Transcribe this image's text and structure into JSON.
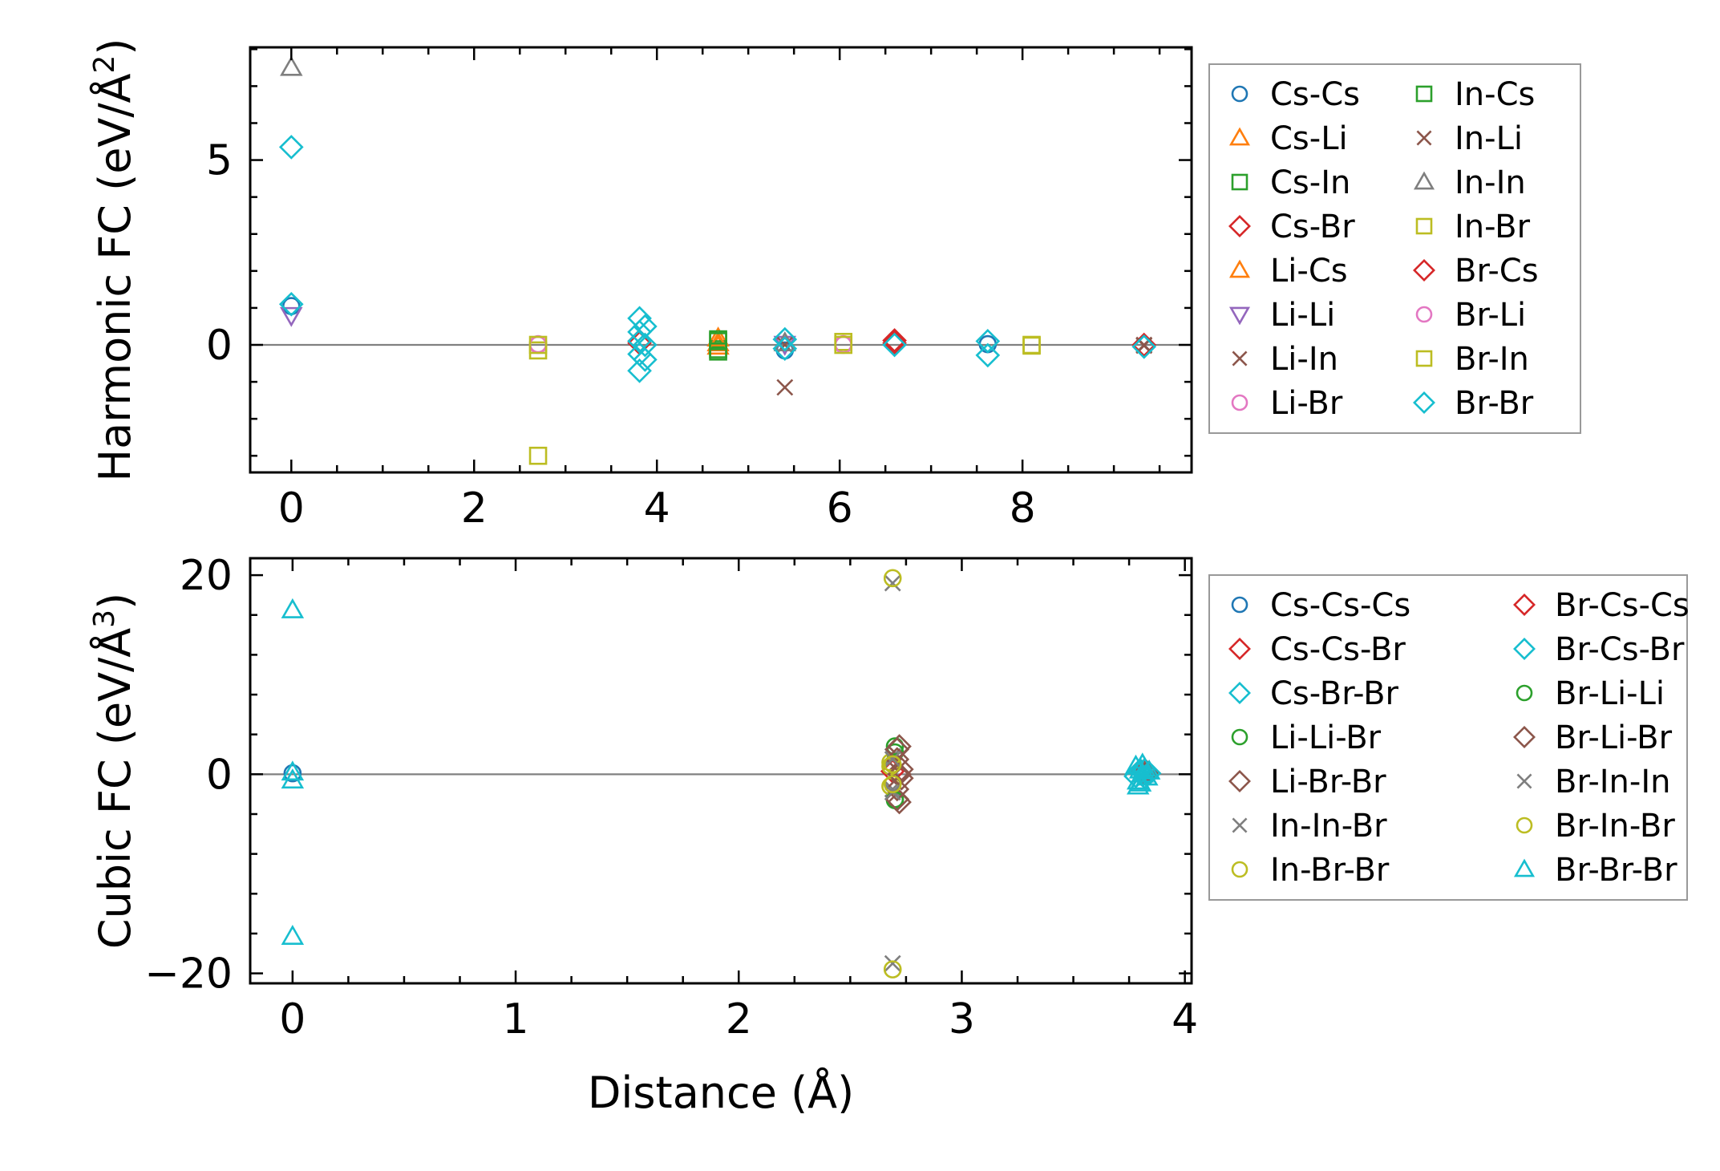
{
  "chart_data": [
    {
      "type": "scatter",
      "ylabel": "Harmonic FC (eV/Å²)",
      "ylabel_parts": {
        "main": "Harmonic FC (eV/Å",
        "sup": "2",
        "close": ")"
      },
      "xlabel": "",
      "xlim": [
        -0.45,
        9.85
      ],
      "ylim": [
        -3.45,
        8.05
      ],
      "xticks": [
        0,
        2,
        4,
        6,
        8
      ],
      "yticks": [
        0,
        5
      ],
      "legend_position": "right-outside-top",
      "legend_columns": 2,
      "series": [
        {
          "name": "Cs-Cs",
          "marker": "circle",
          "color": "#1f77b4",
          "points": [
            [
              0,
              1.05
            ],
            [
              5.4,
              -0.15
            ],
            [
              7.62,
              0.02
            ]
          ]
        },
        {
          "name": "Cs-Li",
          "marker": "triangle-up",
          "color": "#ff7f0e",
          "points": [
            [
              4.67,
              0.18
            ],
            [
              4.67,
              -0.04
            ]
          ]
        },
        {
          "name": "Cs-In",
          "marker": "square",
          "color": "#2ca02c",
          "points": [
            [
              4.67,
              0.15
            ],
            [
              4.67,
              -0.12
            ]
          ]
        },
        {
          "name": "Cs-Br",
          "marker": "diamond",
          "color": "#d62728",
          "points": [
            [
              3.81,
              0.1
            ],
            [
              6.6,
              0.05
            ],
            [
              9.33,
              0.0
            ]
          ]
        },
        {
          "name": "Li-Cs",
          "marker": "triangle-up",
          "color": "#ff7f0e",
          "points": [
            [
              4.67,
              0.05
            ]
          ]
        },
        {
          "name": "Li-Li",
          "marker": "triangle-down",
          "color": "#9467bd",
          "points": [
            [
              0,
              0.8
            ],
            [
              5.4,
              0.02
            ]
          ]
        },
        {
          "name": "Li-In",
          "marker": "x",
          "color": "#8c564b",
          "points": [
            [
              5.4,
              -1.15
            ],
            [
              9.33,
              0.0
            ]
          ]
        },
        {
          "name": "Li-Br",
          "marker": "circle",
          "color": "#e377c2",
          "points": [
            [
              2.7,
              0.02
            ],
            [
              6.04,
              0.02
            ]
          ]
        },
        {
          "name": "In-Cs",
          "marker": "square",
          "color": "#2ca02c",
          "points": [
            [
              4.67,
              0.1
            ],
            [
              4.67,
              -0.18
            ]
          ]
        },
        {
          "name": "In-Li",
          "marker": "x",
          "color": "#8c564b",
          "points": [
            [
              5.4,
              0.0
            ],
            [
              9.33,
              -0.02
            ]
          ]
        },
        {
          "name": "In-In",
          "marker": "triangle-up",
          "color": "#7f7f7f",
          "points": [
            [
              0,
              7.5
            ],
            [
              5.4,
              0.05
            ]
          ]
        },
        {
          "name": "In-Br",
          "marker": "square",
          "color": "#bcbd22",
          "points": [
            [
              2.7,
              -3.0
            ],
            [
              2.7,
              -0.15
            ],
            [
              6.04,
              0.08
            ],
            [
              8.1,
              0.0
            ]
          ]
        },
        {
          "name": "Br-Cs",
          "marker": "diamond",
          "color": "#d62728",
          "points": [
            [
              6.6,
              0.12
            ],
            [
              3.81,
              0.05
            ]
          ]
        },
        {
          "name": "Br-Li",
          "marker": "circle",
          "color": "#e377c2",
          "points": [
            [
              2.7,
              0.0
            ],
            [
              6.04,
              0.0
            ]
          ]
        },
        {
          "name": "Br-In",
          "marker": "square",
          "color": "#bcbd22",
          "points": [
            [
              2.7,
              0.0
            ],
            [
              6.04,
              0.0
            ],
            [
              8.1,
              -0.02
            ]
          ]
        },
        {
          "name": "Br-Br",
          "marker": "diamond",
          "color": "#17becf",
          "points": [
            [
              0,
              5.35
            ],
            [
              0,
              1.1
            ],
            [
              3.81,
              0.72
            ],
            [
              3.81,
              0.35
            ],
            [
              3.81,
              0.1
            ],
            [
              3.81,
              -0.25
            ],
            [
              3.81,
              -0.7
            ],
            [
              3.87,
              0.5
            ],
            [
              3.87,
              -0.4
            ],
            [
              3.87,
              0.0
            ],
            [
              5.4,
              0.15
            ],
            [
              5.4,
              -0.1
            ],
            [
              6.6,
              0.0
            ],
            [
              7.62,
              0.1
            ],
            [
              7.62,
              -0.28
            ],
            [
              9.33,
              -0.05
            ]
          ]
        }
      ]
    },
    {
      "type": "scatter",
      "ylabel": "Cubic FC (eV/Å³)",
      "ylabel_parts": {
        "main": "Cubic FC (eV/Å",
        "sup": "3",
        "close": ")"
      },
      "xlabel": "Distance (Å)",
      "xlim": [
        -0.19,
        4.03
      ],
      "ylim": [
        -21.0,
        21.7
      ],
      "xticks": [
        0,
        1,
        2,
        3,
        4
      ],
      "yticks": [
        -20,
        0,
        20
      ],
      "ytick_labels": [
        "−20",
        "0",
        "20"
      ],
      "legend_position": "right-outside-top",
      "legend_columns": 2,
      "series": [
        {
          "name": "Cs-Cs-Cs",
          "marker": "circle",
          "color": "#1f77b4",
          "points": [
            [
              0,
              0.1
            ],
            [
              3.81,
              0.0
            ]
          ]
        },
        {
          "name": "Cs-Cs-Br",
          "marker": "diamond",
          "color": "#d62728",
          "points": [
            [
              2.69,
              0.3
            ],
            [
              3.81,
              0.2
            ]
          ]
        },
        {
          "name": "Cs-Br-Br",
          "marker": "diamond",
          "color": "#17becf",
          "points": [
            [
              3.8,
              0.4
            ],
            [
              3.82,
              -0.3
            ]
          ]
        },
        {
          "name": "Li-Li-Br",
          "marker": "circle",
          "color": "#2ca02c",
          "points": [
            [
              2.7,
              2.2
            ],
            [
              2.7,
              -2.5
            ]
          ]
        },
        {
          "name": "Li-Br-Br",
          "marker": "diamond",
          "color": "#8c564b",
          "points": [
            [
              2.72,
              2.8
            ],
            [
              2.72,
              -2.8
            ],
            [
              2.73,
              0.5
            ],
            [
              2.73,
              -0.4
            ],
            [
              3.83,
              0.2
            ]
          ]
        },
        {
          "name": "In-In-Br",
          "marker": "x",
          "color": "#7f7f7f",
          "points": [
            [
              2.69,
              19.2
            ],
            [
              2.69,
              -19.0
            ],
            [
              2.69,
              1.8
            ],
            [
              2.69,
              -1.5
            ]
          ]
        },
        {
          "name": "In-Br-Br",
          "marker": "circle",
          "color": "#bcbd22",
          "points": [
            [
              2.68,
              1.2
            ],
            [
              2.68,
              -1.2
            ],
            [
              2.68,
              0.8
            ]
          ]
        },
        {
          "name": "Br-Cs-Cs",
          "marker": "diamond",
          "color": "#d62728",
          "points": [
            [
              3.82,
              0.3
            ]
          ]
        },
        {
          "name": "Br-Cs-Br",
          "marker": "diamond",
          "color": "#17becf",
          "points": [
            [
              3.78,
              -0.2
            ],
            [
              3.84,
              0.1
            ]
          ]
        },
        {
          "name": "Br-Li-Li",
          "marker": "circle",
          "color": "#2ca02c",
          "points": [
            [
              2.7,
              2.8
            ],
            [
              2.7,
              -2.6
            ]
          ]
        },
        {
          "name": "Br-Li-Br",
          "marker": "diamond",
          "color": "#8c564b",
          "points": [
            [
              2.71,
              2.5
            ],
            [
              2.71,
              1.5
            ],
            [
              2.71,
              -1.5
            ],
            [
              2.71,
              -2.5
            ],
            [
              2.72,
              0.0
            ]
          ]
        },
        {
          "name": "Br-In-In",
          "marker": "x",
          "color": "#7f7f7f",
          "points": [
            [
              2.69,
              1.5
            ],
            [
              2.69,
              -1.8
            ]
          ]
        },
        {
          "name": "Br-In-Br",
          "marker": "circle",
          "color": "#bcbd22",
          "points": [
            [
              2.69,
              19.7
            ],
            [
              2.69,
              -19.6
            ],
            [
              2.69,
              1.0
            ],
            [
              2.69,
              -1.0
            ]
          ]
        },
        {
          "name": "Br-Br-Br",
          "marker": "triangle-up",
          "color": "#17becf",
          "points": [
            [
              0,
              16.5
            ],
            [
              0,
              -16.3
            ],
            [
              0,
              0.2
            ],
            [
              0,
              -0.6
            ],
            [
              3.78,
              0.8
            ],
            [
              3.79,
              -0.7
            ],
            [
              3.8,
              0.4
            ],
            [
              3.8,
              -0.9
            ],
            [
              3.81,
              0.0
            ],
            [
              3.82,
              0.6
            ],
            [
              3.83,
              -0.3
            ],
            [
              3.84,
              0.3
            ],
            [
              3.79,
              -1.2
            ],
            [
              3.81,
              1.0
            ]
          ]
        }
      ]
    }
  ]
}
